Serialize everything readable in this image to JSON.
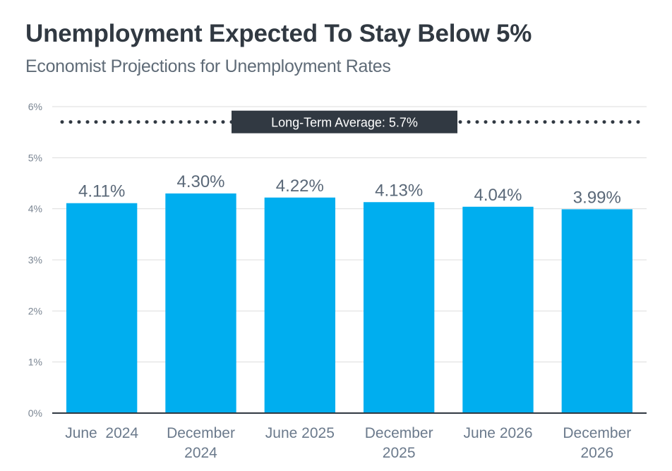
{
  "header": {
    "title": "Unemployment Expected To Stay Below 5%",
    "subtitle": "Economist Projections for Unemployment Rates"
  },
  "colors": {
    "bar": "#00AEEF",
    "title": "#313942",
    "reference_line": "#313942",
    "grid": "#dddddd",
    "axis": "#313942"
  },
  "chart_data": {
    "type": "bar",
    "title": "Unemployment Expected To Stay Below 5%",
    "subtitle": "Economist Projections for Unemployment Rates",
    "xlabel": "",
    "ylabel": "",
    "categories": [
      [
        "June  2024"
      ],
      [
        "December",
        "2024"
      ],
      [
        "June 2025"
      ],
      [
        "December",
        "2025"
      ],
      [
        "June 2026"
      ],
      [
        "December",
        "2026"
      ]
    ],
    "values": [
      4.11,
      4.3,
      4.22,
      4.13,
      4.04,
      3.99
    ],
    "value_labels": [
      "4.11%",
      "4.30%",
      "4.22%",
      "4.13%",
      "4.04%",
      "3.99%"
    ],
    "ylim": [
      0,
      6
    ],
    "yticks": [
      0,
      1,
      2,
      3,
      4,
      5,
      6
    ],
    "ytick_labels": [
      "0%",
      "1%",
      "2%",
      "3%",
      "4%",
      "5%",
      "6%"
    ],
    "grid": true,
    "legend": "none",
    "reference_line": {
      "value": 5.7,
      "label": "Long-Term Average: 5.7%",
      "style": "dotted"
    }
  }
}
